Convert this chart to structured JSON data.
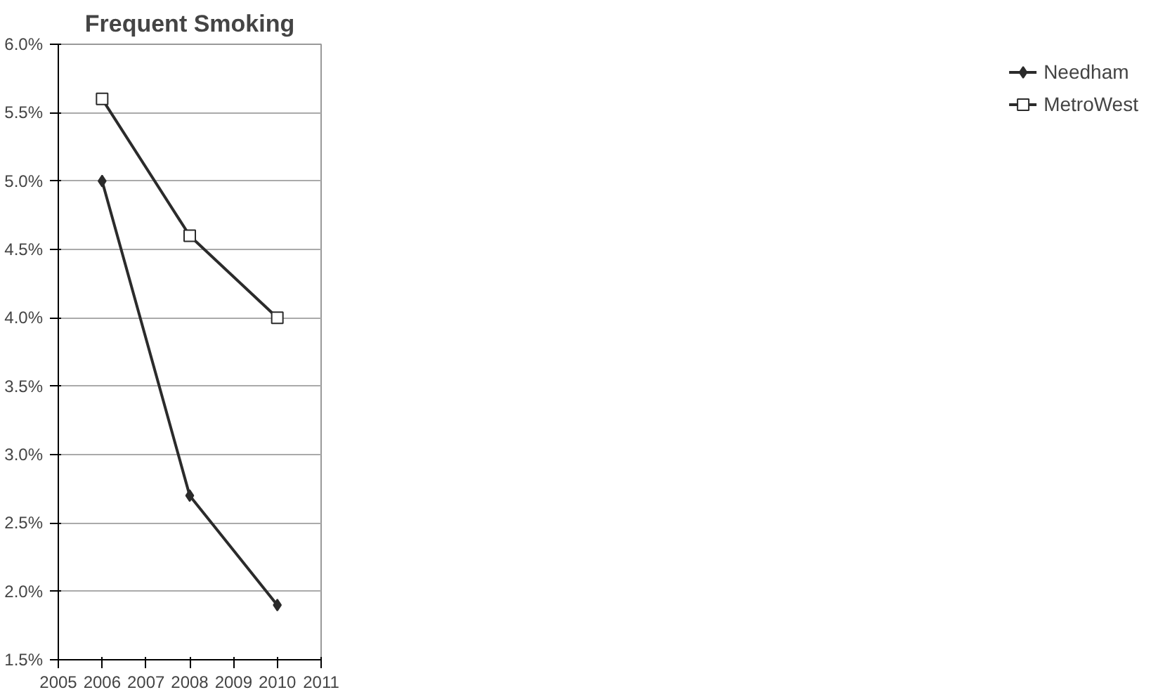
{
  "chart_data": {
    "type": "line",
    "title": "Frequent Smoking",
    "x": [
      2006,
      2008,
      2010
    ],
    "series": [
      {
        "name": "Needham",
        "color": "#2b2b2b",
        "values": [
          5.0,
          2.7,
          1.9
        ],
        "marker": "diamond"
      },
      {
        "name": "MetroWest",
        "color": "#2b2b2b",
        "values": [
          5.6,
          4.6,
          4.0
        ],
        "marker": "square"
      }
    ],
    "xlim": [
      2005,
      2011
    ],
    "xticks": [
      2005,
      2006,
      2007,
      2008,
      2009,
      2010,
      2011
    ],
    "ylim": [
      1.5,
      6.0
    ],
    "yticks": [
      {
        "value": 1.5,
        "label": "1.5%"
      },
      {
        "value": 2.0,
        "label": "2.0%"
      },
      {
        "value": 2.5,
        "label": "2.5%"
      },
      {
        "value": 3.0,
        "label": "3.0%"
      },
      {
        "value": 3.5,
        "label": "3.5%"
      },
      {
        "value": 4.0,
        "label": "4.0%"
      },
      {
        "value": 4.5,
        "label": "4.5%"
      },
      {
        "value": 5.0,
        "label": "5.0%"
      },
      {
        "value": 5.5,
        "label": "5.5%"
      },
      {
        "value": 6.0,
        "label": "6.0%"
      }
    ],
    "grid": "y",
    "legend": "right",
    "line_style": "solid"
  }
}
